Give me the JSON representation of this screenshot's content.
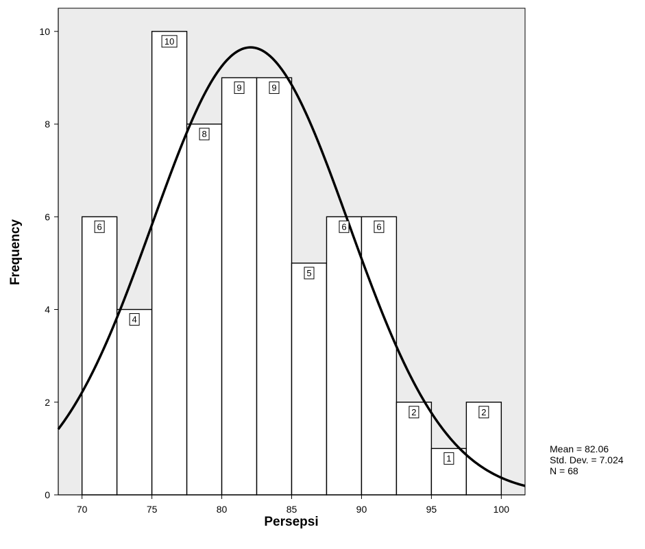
{
  "chart_data": {
    "type": "bar",
    "subtype": "histogram",
    "xlabel": "Persepsi",
    "ylabel": "Frequency",
    "bin_width": 2.5,
    "bins": [
      {
        "start": 70.0,
        "end": 72.5,
        "value": 6
      },
      {
        "start": 72.5,
        "end": 75.0,
        "value": 4
      },
      {
        "start": 75.0,
        "end": 77.5,
        "value": 10
      },
      {
        "start": 77.5,
        "end": 80.0,
        "value": 8
      },
      {
        "start": 80.0,
        "end": 82.5,
        "value": 9
      },
      {
        "start": 82.5,
        "end": 85.0,
        "value": 9
      },
      {
        "start": 85.0,
        "end": 87.5,
        "value": 5
      },
      {
        "start": 87.5,
        "end": 90.0,
        "value": 6
      },
      {
        "start": 90.0,
        "end": 92.5,
        "value": 6
      },
      {
        "start": 92.5,
        "end": 95.0,
        "value": 2
      },
      {
        "start": 95.0,
        "end": 97.5,
        "value": 1
      },
      {
        "start": 97.5,
        "end": 100.0,
        "value": 2
      }
    ],
    "xlim": [
      68.3,
      101.7
    ],
    "ylim": [
      0,
      10.5
    ],
    "xticks": [
      "70",
      "75",
      "80",
      "85",
      "90",
      "95",
      "100"
    ],
    "yticks": [
      "0",
      "2",
      "4",
      "6",
      "8",
      "10"
    ],
    "normal_curve": {
      "mean": 82.06,
      "std": 7.024,
      "n": 68
    },
    "stats": [
      "Mean = 82.06",
      "Std. Dev. = 7.024",
      "N = 68"
    ],
    "plot_background": "#ececec",
    "bar_fill": "#ffffff",
    "curve_color": "#000000"
  }
}
